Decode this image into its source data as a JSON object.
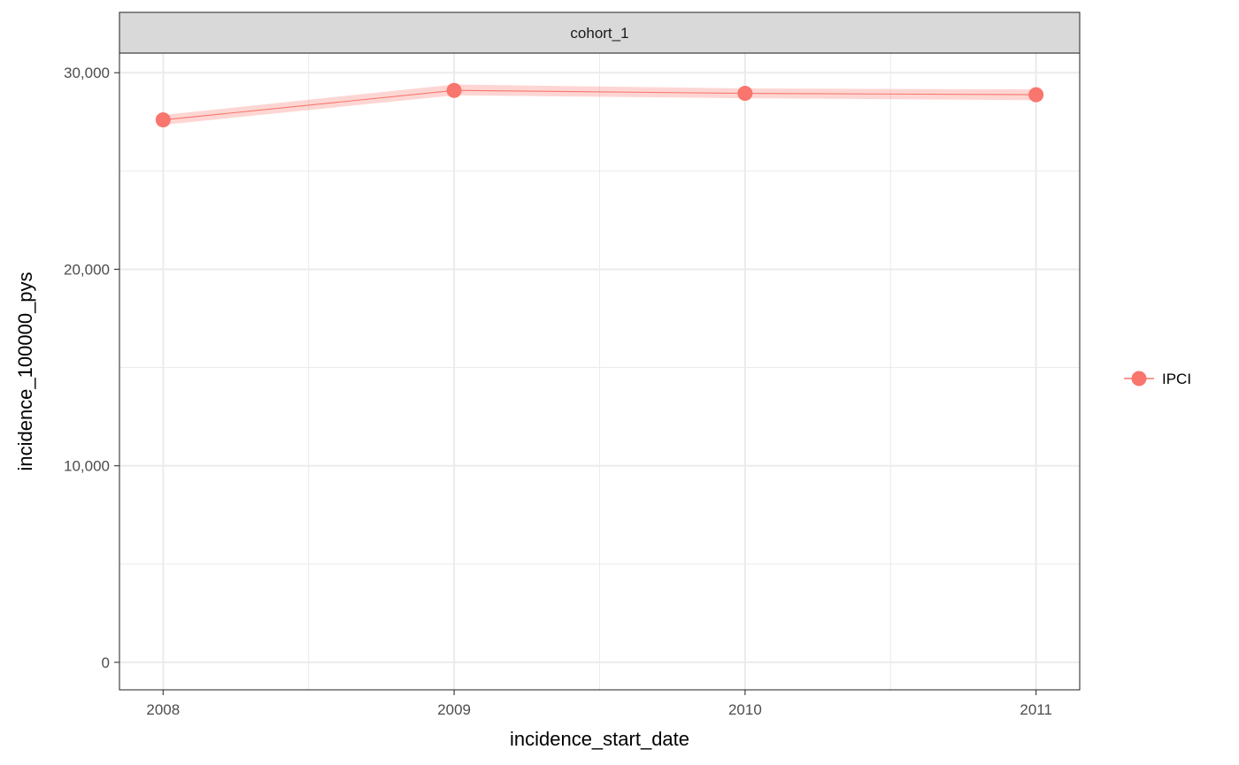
{
  "chart_data": {
    "type": "line",
    "facet_label": "cohort_1",
    "xlabel": "incidence_start_date",
    "ylabel": "incidence_100000_pys",
    "x": [
      "2008",
      "2009",
      "2010",
      "2011"
    ],
    "x_ticks": [
      "2008",
      "2009",
      "2010",
      "2011"
    ],
    "y_ticks": [
      0,
      10000,
      20000,
      30000
    ],
    "y_tick_labels": [
      "0",
      "10,000",
      "20,000",
      "30,000"
    ],
    "ylim": [
      -1400,
      31000
    ],
    "xlim": [
      2007.85,
      2011.15
    ],
    "grid": true,
    "legend_position": "right",
    "series": [
      {
        "name": "IPCI",
        "color": "#F8766D",
        "ribbon_color": "#F8766D",
        "values": [
          27600,
          29100,
          28950,
          28880
        ],
        "lower": [
          27350,
          28850,
          28700,
          28600
        ],
        "upper": [
          27850,
          29400,
          29200,
          29150
        ]
      }
    ]
  }
}
